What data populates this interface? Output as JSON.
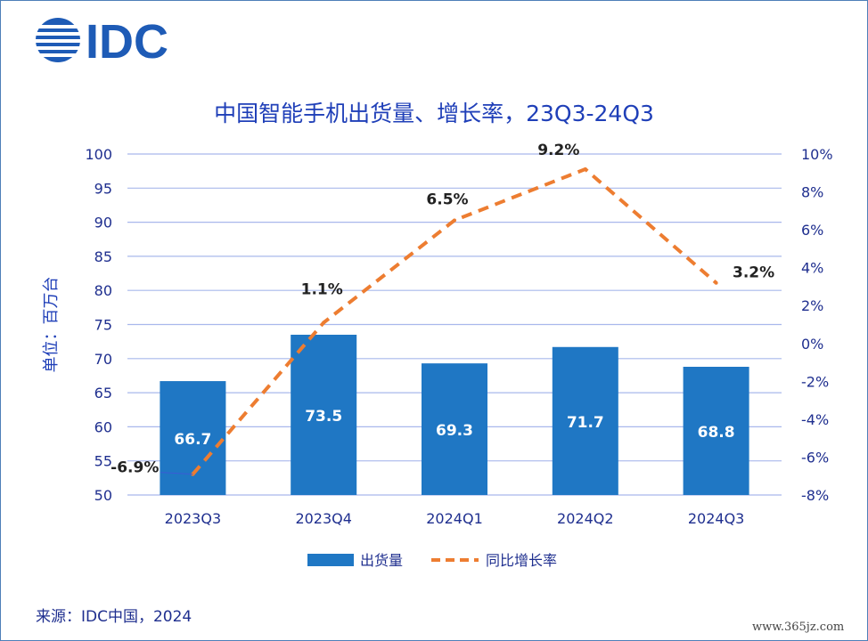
{
  "brand": {
    "logo_text": "IDC",
    "color": "#1e5bb6"
  },
  "title": "中国智能手机出货量、增长率，23Q3-24Q3",
  "source": "来源：IDC中国，2024",
  "watermark": "www.365jz.com",
  "chart_data": {
    "type": "bar",
    "categories": [
      "2023Q3",
      "2023Q4",
      "2024Q1",
      "2024Q2",
      "2024Q3"
    ],
    "series": [
      {
        "name": "出货量",
        "type": "bar",
        "axis": "left",
        "color": "#1f77c4",
        "values": [
          66.7,
          73.5,
          69.3,
          71.7,
          68.8
        ],
        "labels": [
          "66.7",
          "73.5",
          "69.3",
          "71.7",
          "68.8"
        ]
      },
      {
        "name": "同比增长率",
        "type": "line",
        "style": "dashed",
        "axis": "right",
        "color": "#ed7d31",
        "values": [
          -6.9,
          1.1,
          6.5,
          9.2,
          3.2
        ],
        "labels": [
          "-6.9%",
          "1.1%",
          "6.5%",
          "9.2%",
          "3.2%"
        ]
      }
    ],
    "ylabel": "单位：百万台",
    "ylim": [
      50,
      100
    ],
    "yticks": [
      "50",
      "55",
      "60",
      "65",
      "70",
      "75",
      "80",
      "85",
      "90",
      "95",
      "100"
    ],
    "y2lim": [
      -8,
      10
    ],
    "y2ticks": [
      "-8%",
      "-6%",
      "-4%",
      "-2%",
      "0%",
      "2%",
      "4%",
      "6%",
      "8%",
      "10%"
    ],
    "grid": true,
    "legend_position": "bottom"
  }
}
